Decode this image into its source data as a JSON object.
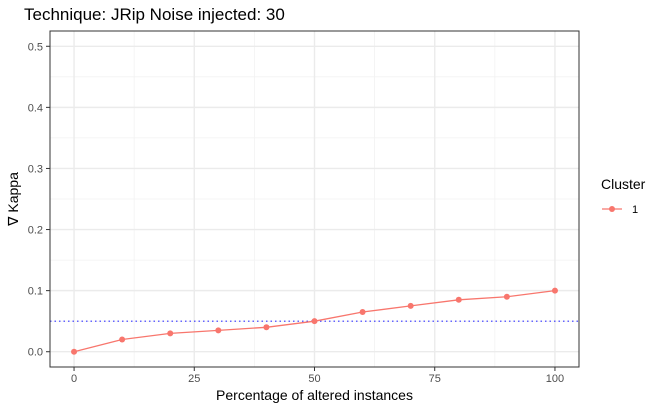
{
  "chart_data": {
    "type": "line",
    "title": "Technique:  JRip  Noise injected:  30",
    "xlabel": "Percentage of altered instances",
    "ylabel": "∇ Kappa",
    "xlim": [
      -5,
      105
    ],
    "ylim": [
      -0.025,
      0.525
    ],
    "x_ticks": [
      0,
      25,
      50,
      75,
      100
    ],
    "x_tick_labels": [
      "0",
      "25",
      "50",
      "75",
      "100"
    ],
    "y_ticks": [
      0.0,
      0.1,
      0.2,
      0.3,
      0.4,
      0.5
    ],
    "y_tick_labels": [
      "0.0",
      "0.1",
      "0.2",
      "0.3",
      "0.4",
      "0.5"
    ],
    "grid": true,
    "legend": {
      "title": "Cluster",
      "placement": "right",
      "entries": [
        "1"
      ]
    },
    "series": [
      {
        "name": "1",
        "color": "#F8766D",
        "x": [
          0,
          10,
          20,
          30,
          40,
          50,
          60,
          70,
          80,
          90,
          100
        ],
        "values": [
          0.0,
          0.02,
          0.03,
          0.035,
          0.04,
          0.05,
          0.065,
          0.075,
          0.085,
          0.09,
          0.1
        ]
      }
    ],
    "reference_line": {
      "y": 0.05,
      "style": "dotted",
      "color": "#3333ff"
    }
  }
}
